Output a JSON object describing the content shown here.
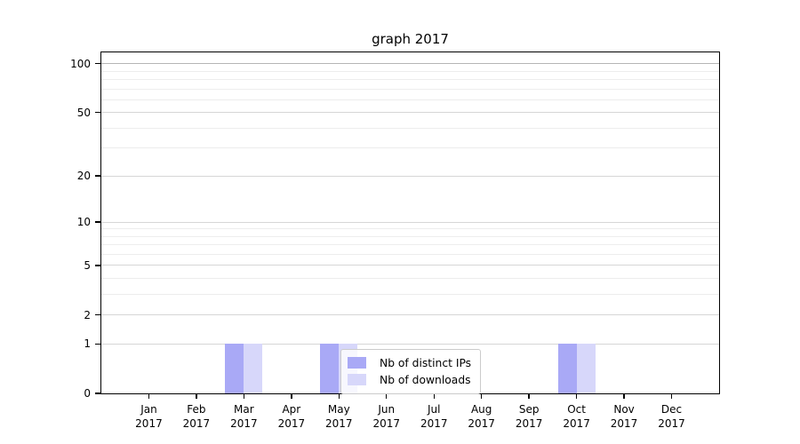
{
  "title": "graph 2017",
  "chart_data": {
    "type": "bar",
    "title": "graph 2017",
    "grid": true,
    "legend_position": "inside lower-center",
    "x_axis": {
      "categories": [
        {
          "month": "Jan",
          "year": "2017"
        },
        {
          "month": "Feb",
          "year": "2017"
        },
        {
          "month": "Mar",
          "year": "2017"
        },
        {
          "month": "Apr",
          "year": "2017"
        },
        {
          "month": "May",
          "year": "2017"
        },
        {
          "month": "Jun",
          "year": "2017"
        },
        {
          "month": "Jul",
          "year": "2017"
        },
        {
          "month": "Aug",
          "year": "2017"
        },
        {
          "month": "Sep",
          "year": "2017"
        },
        {
          "month": "Oct",
          "year": "2017"
        },
        {
          "month": "Nov",
          "year": "2017"
        },
        {
          "month": "Dec",
          "year": "2017"
        }
      ]
    },
    "y_axis": {
      "scale": "log1p",
      "min": 0,
      "max": 117.2,
      "major_ticks": [
        {
          "value": 0,
          "label": "0"
        },
        {
          "value": 1,
          "label": "1"
        },
        {
          "value": 2,
          "label": "2"
        },
        {
          "value": 5,
          "label": "5"
        },
        {
          "value": 10,
          "label": "10"
        },
        {
          "value": 20,
          "label": "20"
        },
        {
          "value": 50,
          "label": "50"
        },
        {
          "value": 100,
          "label": "100"
        }
      ],
      "minor_ticks": [
        3,
        4,
        6,
        7,
        8,
        9,
        30,
        40,
        60,
        70,
        80,
        90
      ]
    },
    "series": [
      {
        "name": "Nb of distinct IPs",
        "color": "#a9a9f6",
        "values": [
          0,
          0,
          1,
          0,
          1,
          0,
          0,
          0,
          0,
          1,
          0,
          0
        ]
      },
      {
        "name": "Nb of downloads",
        "color": "#d7d7fa",
        "values": [
          0,
          0,
          1,
          0,
          1,
          0,
          0,
          0,
          0,
          1,
          0,
          0
        ]
      }
    ]
  }
}
